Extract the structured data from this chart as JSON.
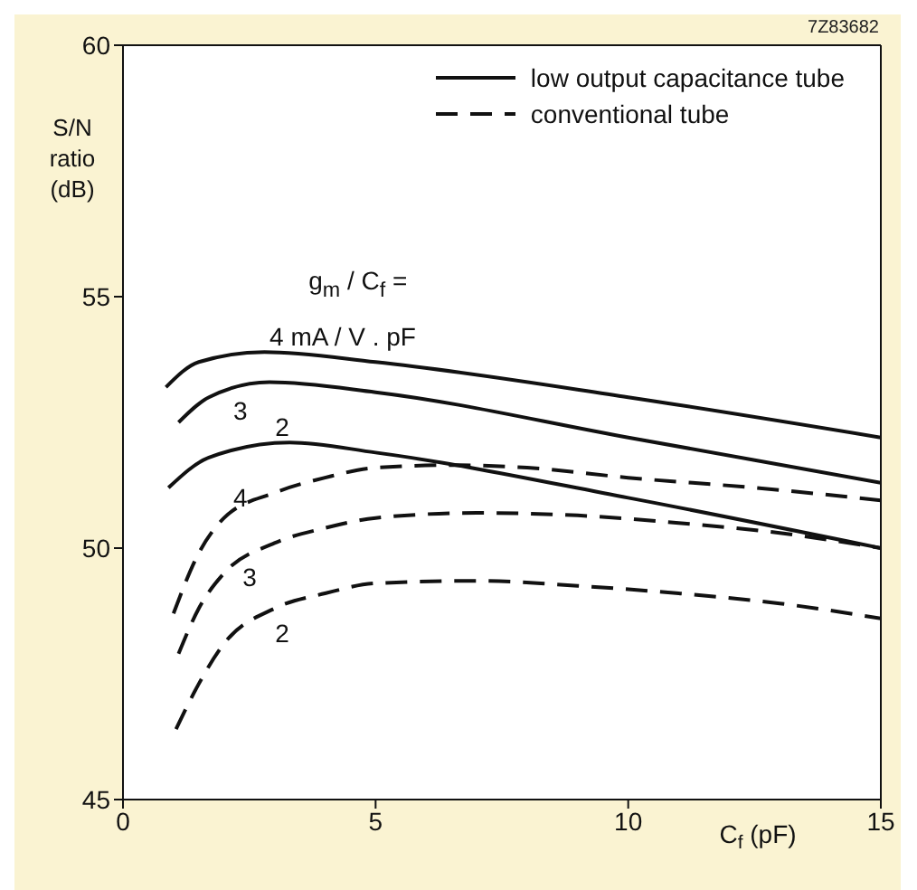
{
  "chart_data": {
    "type": "line",
    "xlabel": "C$_{f}$ (pF)",
    "ylabel": "S/N ratio (dB)",
    "xlim": [
      0,
      15
    ],
    "xticks": [
      0,
      5,
      10,
      15
    ],
    "ylim": [
      45,
      60
    ],
    "yticks": [
      45,
      50,
      55,
      60
    ],
    "legend": "top right",
    "marker": "none",
    "series": [
      {
        "name": "low output capacitance tube",
        "color": "#111111",
        "line_style": "solid",
        "x": [
          0.85,
          1.5,
          2.8,
          5,
          10,
          15
        ],
        "values": [
          53.2,
          53.7,
          53.9,
          53.7,
          53.0,
          52.2
        ]
      },
      {
        "color": "#111111",
        "line_style": "solid",
        "x": [
          1.1,
          1.7,
          2.9,
          5,
          10,
          15
        ],
        "values": [
          52.5,
          53.0,
          53.3,
          53.1,
          52.2,
          51.3
        ]
      },
      {
        "color": "#111111",
        "line_style": "solid",
        "x": [
          0.9,
          1.7,
          3.3,
          5,
          10,
          15
        ],
        "values": [
          51.2,
          51.8,
          52.1,
          51.9,
          51.0,
          50.0
        ]
      },
      {
        "name": "conventional tube",
        "color": "#111111",
        "line_style": "dashed",
        "x": [
          1,
          1.5,
          2,
          3,
          4,
          5,
          6.5,
          8,
          10,
          12.5,
          15
        ],
        "values": [
          48.7,
          49.9,
          50.6,
          51.1,
          51.4,
          51.6,
          51.65,
          51.6,
          51.4,
          51.2,
          50.95
        ]
      },
      {
        "color": "#111111",
        "line_style": "dashed",
        "x": [
          1.1,
          1.5,
          2,
          3,
          4,
          5,
          7,
          9,
          11,
          13,
          15
        ],
        "values": [
          47.9,
          48.8,
          49.5,
          50.1,
          50.4,
          50.6,
          50.7,
          50.65,
          50.5,
          50.3,
          50.0
        ]
      },
      {
        "color": "#111111",
        "line_style": "dashed",
        "x": [
          1.05,
          1.5,
          2,
          3,
          4,
          5,
          7,
          9,
          11,
          13,
          15
        ],
        "values": [
          46.4,
          47.3,
          48.1,
          48.8,
          49.1,
          49.3,
          49.35,
          49.25,
          49.1,
          48.9,
          48.6
        ]
      }
    ],
    "annotations": [
      "7Z83682",
      "g$_{m}$ / C$_{f}$ =",
      "4 mA / V . pF",
      "3",
      "2",
      "4",
      "3",
      "2"
    ]
  }
}
